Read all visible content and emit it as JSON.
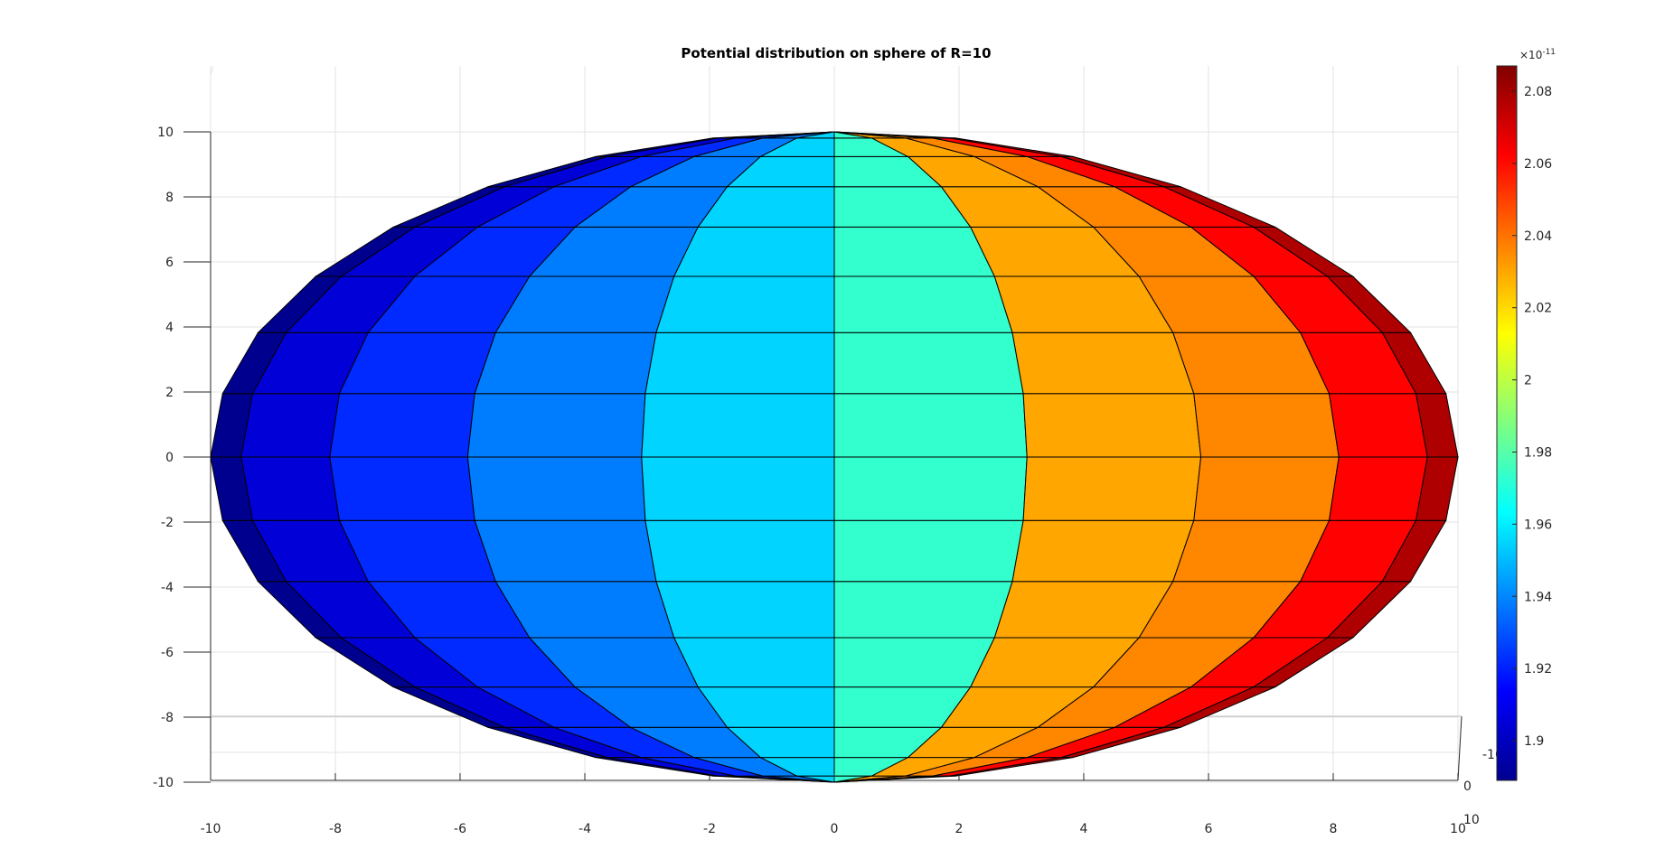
{
  "figure": {
    "background": "#ffffff",
    "axes_color": "#262626",
    "grid_color": "#e3e3e3",
    "edge_color": "#000000"
  },
  "chart_data": {
    "type": "heatmap",
    "subtype": "3d-surface-sphere",
    "title": "Potential distribution on sphere of R=10",
    "xlabel": "",
    "ylabel": "",
    "zlabel": "",
    "xlim": [
      -10,
      10
    ],
    "ylim": [
      -10,
      10
    ],
    "zlim": [
      -10,
      10
    ],
    "grid": true,
    "x_ticks": [
      -10,
      -8,
      -6,
      -4,
      -2,
      0,
      2,
      4,
      6,
      8,
      10
    ],
    "z_ticks": [
      -10,
      -8,
      -6,
      -4,
      -2,
      0,
      2,
      4,
      6,
      8,
      10
    ],
    "y_ticks": [
      -10,
      0,
      10
    ],
    "tick_labels": {
      "x": [
        "-10",
        "-8",
        "-6",
        "-4",
        "-2",
        "0",
        "2",
        "4",
        "6",
        "8",
        "10"
      ],
      "z": [
        "-10",
        "-8",
        "-6",
        "-4",
        "-2",
        "0",
        "2",
        "4",
        "6",
        "8",
        "10"
      ],
      "y": [
        "-10",
        "0",
        "10"
      ]
    },
    "colormap": "jet",
    "colormap_stops": [
      "#00008f",
      "#0000ff",
      "#00ffff",
      "#ffff00",
      "#ff0000",
      "#800000"
    ],
    "colorbar": {
      "limits": [
        1.889,
        2.087
      ],
      "ticks": [
        1.9,
        1.92,
        1.94,
        1.96,
        1.98,
        2,
        2.02,
        2.04,
        2.06,
        2.08
      ],
      "tick_labels": [
        "1.9",
        "1.92",
        "1.94",
        "1.96",
        "1.98",
        "2",
        "2.02",
        "2.04",
        "2.06",
        "2.08"
      ],
      "exponent_label": "×10",
      "exponent": "-11",
      "placement": "right"
    },
    "sphere": {
      "radius": 10,
      "longitude_bands": 20,
      "latitude_bands": 16,
      "visible_longitudes_deg": [
        -90,
        -72,
        -54,
        -36,
        -18,
        0,
        18,
        36,
        54,
        72,
        90
      ]
    },
    "values_by_longitude": {
      "longitude_deg": [
        -81,
        -63,
        -45,
        -27,
        -9,
        9,
        27,
        45,
        63,
        81
      ],
      "potential_e11": [
        1.889,
        1.905,
        1.922,
        1.938,
        1.955,
        1.973,
        2.03,
        2.036,
        2.062,
        2.078
      ]
    }
  }
}
